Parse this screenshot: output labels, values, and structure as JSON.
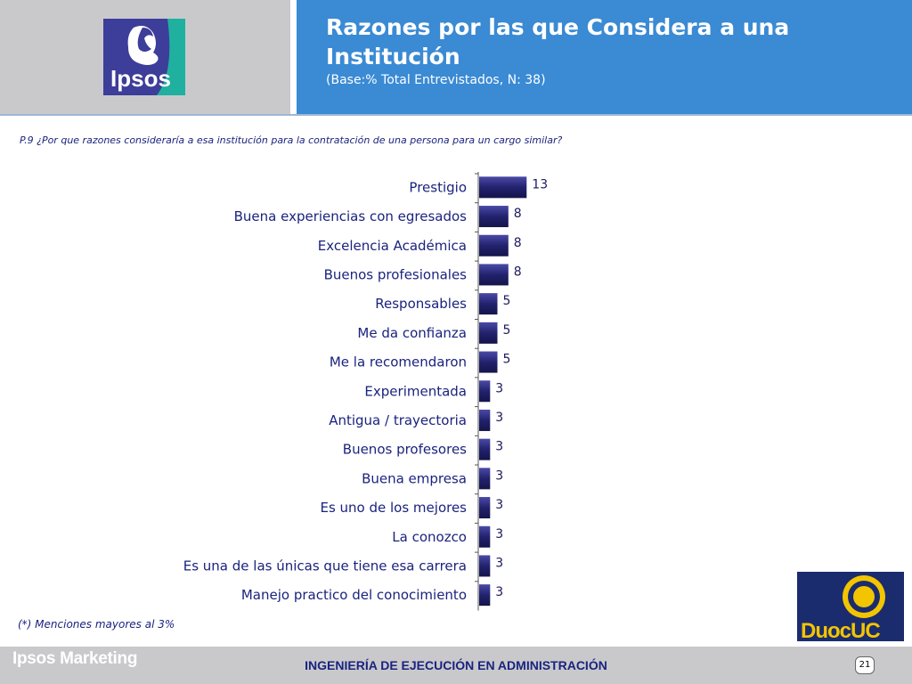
{
  "header": {
    "title": "Razones por las que Considera a una Institución",
    "subtitle": "(Base:% Total Entrevistados, N: 38)",
    "logo_text": "Ipsos"
  },
  "question": "P.9 ¿Por que razones consideraría a esa institución para la contratación de una persona para un cargo similar?",
  "note": "(*) Menciones mayores al 3%",
  "footer": {
    "brand": "Ipsos Marketing",
    "program": "INGENIERÍA DE EJECUCIÓN EN ADMINISTRACIÓN",
    "page": "21"
  },
  "duoc_logo_text": "DuocUC",
  "colors": {
    "header_blue": "#3a8ad4",
    "bar": "#22226e",
    "text_navy": "#1a237e",
    "duoc_navy": "#1a2b6e",
    "duoc_gold": "#f2c500"
  },
  "chart_data": {
    "type": "bar",
    "orientation": "horizontal",
    "categories": [
      "Prestigio",
      "Buena experiencias con egresados",
      "Excelencia Académica",
      "Buenos profesionales",
      "Responsables",
      "Me da confianza",
      "Me la recomendaron",
      "Experimentada",
      "Antigua / trayectoria",
      "Buenos profesores",
      "Buena empresa",
      "Es uno de los mejores",
      "La conozco",
      "Es una de las únicas que tiene esa carrera",
      "Manejo practico del conocimiento"
    ],
    "values": [
      13,
      8,
      8,
      8,
      5,
      5,
      5,
      3,
      3,
      3,
      3,
      3,
      3,
      3,
      3
    ]
  }
}
